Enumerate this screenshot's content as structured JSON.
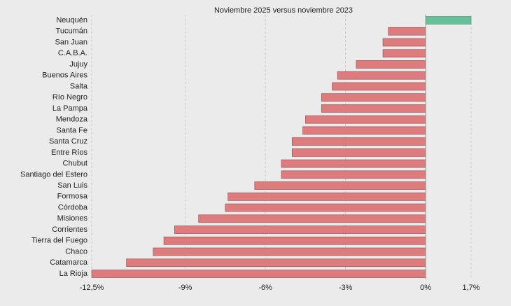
{
  "chart_data": {
    "type": "bar",
    "orientation": "horizontal",
    "title": "Noviembre 2025 versus noviembre 2023",
    "categories": [
      "Neuquén",
      "Tucumán",
      "San Juan",
      "C.A.B.A.",
      "Jujuy",
      "Buenos Aires",
      "Salta",
      "Río Negro",
      "La Pampa",
      "Mendoza",
      "Santa Fe",
      "Santa Cruz",
      "Entre Ríos",
      "Chubut",
      "Santiago del Estero",
      "San Luis",
      "Formosa",
      "Córdoba",
      "Misiones",
      "Corrientes",
      "Tierra del Fuego",
      "Chaco",
      "Catamarca",
      "La Rioja"
    ],
    "values": [
      1.7,
      -1.4,
      -1.6,
      -1.6,
      -2.6,
      -3.3,
      -3.5,
      -3.9,
      -3.9,
      -4.5,
      -4.6,
      -5.0,
      -5.0,
      -5.4,
      -5.4,
      -6.4,
      -7.4,
      -7.5,
      -8.5,
      -9.4,
      -9.8,
      -10.2,
      -11.2,
      -12.5
    ],
    "positive_color": "#66c199",
    "negative_color": "#de7b7d",
    "xlim": [
      -12.5,
      1.7
    ],
    "xticks": [
      {
        "value": -12.5,
        "label": "-12,5%"
      },
      {
        "value": -9,
        "label": "-9%"
      },
      {
        "value": -6,
        "label": "-6%"
      },
      {
        "value": -3,
        "label": "-3%"
      },
      {
        "value": 0,
        "label": "0%"
      },
      {
        "value": 1.7,
        "label": "1,7%"
      }
    ],
    "grid": true
  }
}
